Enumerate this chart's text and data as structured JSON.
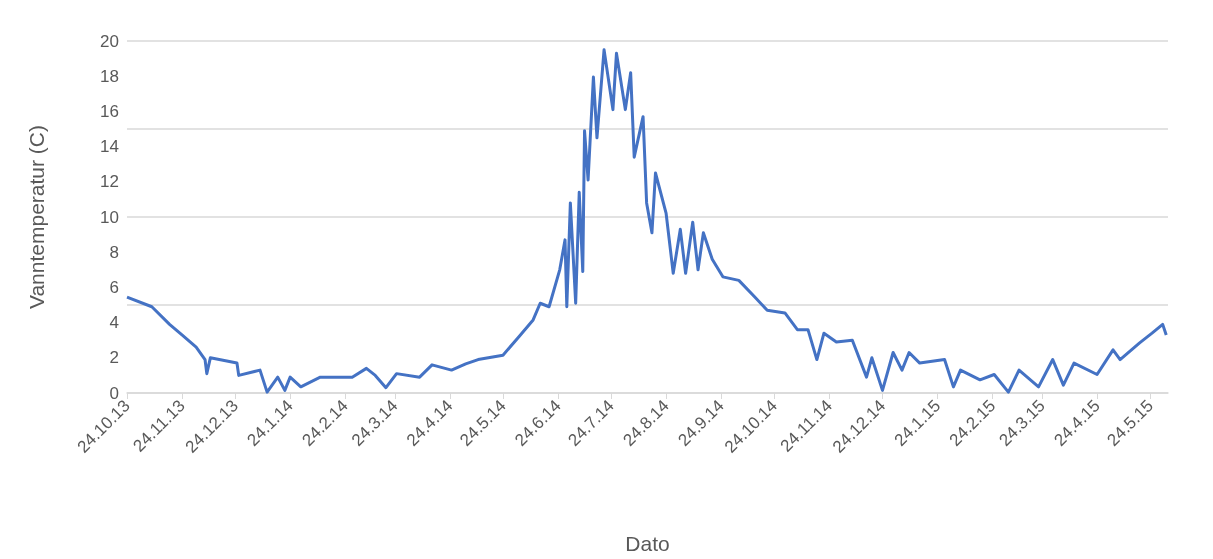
{
  "chart_data": {
    "type": "line",
    "xlabel": "Dato",
    "ylabel": "Vanntemperatur (C)",
    "x": [
      "2013-10-24",
      "2013-11-07",
      "2013-11-17",
      "2013-11-24",
      "2013-12-02",
      "2013-12-07",
      "2013-12-08",
      "2013-12-10",
      "2013-12-25",
      "2013-12-26",
      "2014-01-07",
      "2014-01-11",
      "2014-01-17",
      "2014-01-21",
      "2014-01-24",
      "2014-01-30",
      "2014-02-10",
      "2014-02-28",
      "2014-03-08",
      "2014-03-13",
      "2014-03-19",
      "2014-03-25",
      "2014-04-07",
      "2014-04-14",
      "2014-04-25",
      "2014-05-03",
      "2014-05-10",
      "2014-05-24",
      "2014-06-02",
      "2014-06-10",
      "2014-06-14",
      "2014-06-19",
      "2014-06-25",
      "2014-06-28",
      "2014-06-29",
      "2014-07-01",
      "2014-07-04",
      "2014-07-06",
      "2014-07-08",
      "2014-07-09",
      "2014-07-11",
      "2014-07-14",
      "2014-07-16",
      "2014-07-20",
      "2014-07-25",
      "2014-07-27",
      "2014-08-01",
      "2014-08-04",
      "2014-08-06",
      "2014-08-11",
      "2014-08-13",
      "2014-08-16",
      "2014-08-18",
      "2014-08-24",
      "2014-08-28",
      "2014-09-01",
      "2014-09-04",
      "2014-09-08",
      "2014-09-11",
      "2014-09-14",
      "2014-09-19",
      "2014-09-25",
      "2014-10-04",
      "2014-10-13",
      "2014-10-20",
      "2014-10-30",
      "2014-11-06",
      "2014-11-12",
      "2014-11-17",
      "2014-11-21",
      "2014-11-28",
      "2014-12-07",
      "2014-12-15",
      "2014-12-18",
      "2014-12-24",
      "2014-12-30",
      "2015-01-04",
      "2015-01-08",
      "2015-01-14",
      "2015-01-28",
      "2015-02-02",
      "2015-02-06",
      "2015-02-17",
      "2015-02-25",
      "2015-03-05",
      "2015-03-11",
      "2015-03-22",
      "2015-03-30",
      "2015-04-05",
      "2015-04-11",
      "2015-04-24",
      "2015-05-03",
      "2015-05-07",
      "2015-05-18",
      "2015-05-25",
      "2015-05-31",
      "2015-06-02"
    ],
    "series": [
      {
        "color": "#4472c4",
        "values": [
          5.45,
          4.9,
          3.9,
          3.3,
          2.6,
          1.9,
          1.1,
          2.0,
          1.7,
          1.0,
          1.3,
          0.05,
          0.9,
          0.15,
          0.9,
          0.35,
          0.9,
          0.9,
          1.4,
          1.0,
          0.3,
          1.1,
          0.9,
          1.6,
          1.3,
          1.65,
          1.9,
          2.15,
          3.2,
          4.15,
          5.1,
          4.9,
          7.0,
          8.7,
          4.9,
          10.8,
          5.1,
          11.4,
          6.9,
          14.9,
          12.1,
          17.95,
          14.5,
          19.5,
          16.1,
          19.3,
          16.1,
          18.2,
          13.4,
          15.7,
          10.8,
          9.1,
          12.5,
          10.2,
          6.8,
          9.3,
          6.8,
          9.7,
          7.0,
          9.1,
          7.6,
          6.6,
          6.4,
          5.45,
          4.7,
          4.55,
          3.6,
          3.6,
          1.9,
          3.4,
          2.9,
          3.0,
          0.9,
          2.0,
          0.15,
          2.3,
          1.3,
          2.3,
          1.7,
          1.9,
          0.35,
          1.3,
          0.75,
          1.05,
          0.05,
          1.3,
          0.35,
          1.9,
          0.45,
          1.7,
          1.05,
          2.45,
          1.9,
          2.85,
          3.4,
          3.9,
          3.3
        ]
      }
    ],
    "xlim": [
      "2013-10-24",
      "2015-06-03"
    ],
    "xticks": [
      {
        "value": "2013-10-24",
        "label": "24.10.13"
      },
      {
        "value": "2013-11-24",
        "label": "24.11.13"
      },
      {
        "value": "2013-12-24",
        "label": "24.12.13"
      },
      {
        "value": "2014-01-24",
        "label": "24.1.14"
      },
      {
        "value": "2014-02-24",
        "label": "24.2.14"
      },
      {
        "value": "2014-03-24",
        "label": "24.3.14"
      },
      {
        "value": "2014-04-24",
        "label": "24.4.14"
      },
      {
        "value": "2014-05-24",
        "label": "24.5.14"
      },
      {
        "value": "2014-06-24",
        "label": "24.6.14"
      },
      {
        "value": "2014-07-24",
        "label": "24.7.14"
      },
      {
        "value": "2014-08-24",
        "label": "24.8.14"
      },
      {
        "value": "2014-09-24",
        "label": "24.9.14"
      },
      {
        "value": "2014-10-24",
        "label": "24.10.14"
      },
      {
        "value": "2014-11-24",
        "label": "24.11.14"
      },
      {
        "value": "2014-12-24",
        "label": "24.12.14"
      },
      {
        "value": "2015-01-24",
        "label": "24.1.15"
      },
      {
        "value": "2015-02-24",
        "label": "24.2.15"
      },
      {
        "value": "2015-03-24",
        "label": "24.3.15"
      },
      {
        "value": "2015-04-24",
        "label": "24.4.15"
      },
      {
        "value": "2015-05-24",
        "label": "24.5.15"
      }
    ],
    "ylim": [
      0,
      20
    ],
    "yticks": [
      0,
      2,
      4,
      6,
      8,
      10,
      12,
      14,
      16,
      18,
      20
    ],
    "grid": "y",
    "marker": "none",
    "line_style": "solid"
  }
}
